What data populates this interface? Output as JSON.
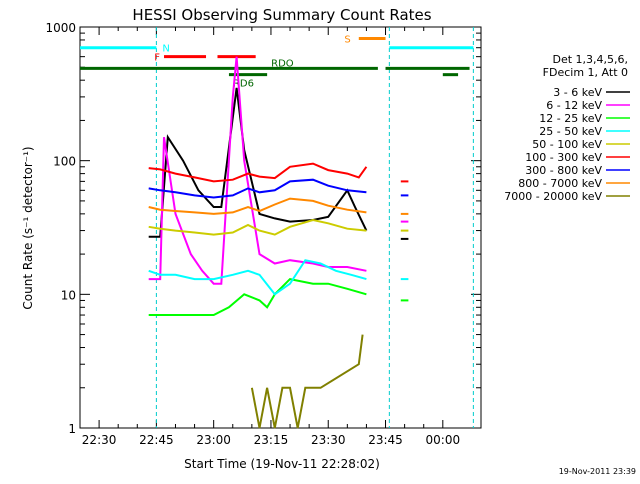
{
  "chart_data": {
    "type": "line",
    "title": "HESSI Observing Summary Count Rates",
    "xlabel": "Start Time (19-Nov-11 22:28:02)",
    "ylabel": "Count Rate (s⁻¹ detector⁻¹)",
    "yscale": "log",
    "ylim": [
      1,
      1000
    ],
    "xlim": [
      "22:25",
      "00:10"
    ],
    "x_ticks": [
      "22:30",
      "22:45",
      "23:00",
      "23:15",
      "23:30",
      "23:45",
      "00:00"
    ],
    "y_ticks": [
      "1",
      "10",
      "100",
      "1000"
    ],
    "legend_header": [
      "Det 1,3,4,5,6,",
      "FDecim 1, Att 0"
    ],
    "legend_placement": "right",
    "footer_timestamp": "19-Nov-2011 23:39",
    "grid": false,
    "series": [
      {
        "name": "3 - 6 keV",
        "color": "#000000",
        "x": [
          "22:43",
          "22:46",
          "22:48",
          "22:52",
          "22:56",
          "23:00",
          "23:02",
          "23:06",
          "23:08",
          "23:12",
          "23:16",
          "23:20",
          "23:26",
          "23:30",
          "23:35",
          "23:37",
          "23:40",
          "23:42",
          "23:46",
          "23:49",
          "23:51"
        ],
        "y": [
          27,
          27,
          150,
          100,
          60,
          45,
          45,
          350,
          120,
          40,
          37,
          35,
          36,
          38,
          60,
          45,
          30,
          null,
          null,
          26,
          26
        ]
      },
      {
        "name": "6 - 12 keV",
        "color": "#ff00ff",
        "x": [
          "22:43",
          "22:46",
          "22:47",
          "22:50",
          "22:54",
          "22:57",
          "23:00",
          "23:02",
          "23:05",
          "23:06",
          "23:08",
          "23:12",
          "23:16",
          "23:20",
          "23:26",
          "23:30",
          "23:35",
          "23:40",
          "23:46",
          "23:49",
          "23:51"
        ],
        "y": [
          13,
          13,
          150,
          40,
          20,
          15,
          12,
          12,
          300,
          600,
          100,
          20,
          17,
          18,
          17,
          16,
          16,
          15,
          null,
          35,
          35
        ]
      },
      {
        "name": "12 - 25 keV",
        "color": "#00ff00",
        "x": [
          "22:43",
          "22:46",
          "22:50",
          "22:55",
          "23:00",
          "23:04",
          "23:08",
          "23:12",
          "23:14",
          "23:16",
          "23:20",
          "23:26",
          "23:30",
          "23:35",
          "23:40",
          "23:42",
          "23:46",
          "23:49",
          "23:51"
        ],
        "y": [
          7,
          7,
          7,
          7,
          7,
          8,
          10,
          9,
          8,
          10,
          13,
          12,
          12,
          11,
          10,
          null,
          null,
          9,
          9
        ]
      },
      {
        "name": "25 - 50 keV",
        "color": "#00ffff",
        "x": [
          "22:43",
          "22:46",
          "22:50",
          "22:55",
          "23:00",
          "23:05",
          "23:09",
          "23:12",
          "23:16",
          "23:20",
          "23:24",
          "23:28",
          "23:32",
          "23:36",
          "23:40",
          "23:42",
          "23:46",
          "23:49",
          "23:51"
        ],
        "y": [
          15,
          14,
          14,
          13,
          13,
          14,
          15,
          14,
          10,
          12,
          18,
          17,
          15,
          14,
          13,
          null,
          null,
          13,
          13
        ]
      },
      {
        "name": "50 - 100 keV",
        "color": "#cccc00",
        "x": [
          "22:43",
          "22:46",
          "22:50",
          "22:55",
          "23:00",
          "23:05",
          "23:09",
          "23:12",
          "23:16",
          "23:20",
          "23:26",
          "23:30",
          "23:35",
          "23:40",
          "23:42",
          "23:46",
          "23:49",
          "23:51"
        ],
        "y": [
          32,
          31,
          30,
          29,
          28,
          29,
          33,
          30,
          28,
          32,
          36,
          34,
          31,
          30,
          null,
          null,
          30,
          30
        ]
      },
      {
        "name": "100 - 300 keV",
        "color": "#ff0000",
        "x": [
          "22:43",
          "22:46",
          "22:50",
          "22:55",
          "23:00",
          "23:05",
          "23:09",
          "23:12",
          "23:16",
          "23:20",
          "23:26",
          "23:30",
          "23:35",
          "23:38",
          "23:40",
          "23:42",
          "23:46",
          "23:49",
          "23:51"
        ],
        "y": [
          88,
          86,
          80,
          75,
          70,
          72,
          80,
          76,
          74,
          90,
          95,
          85,
          80,
          75,
          90,
          null,
          null,
          70,
          70
        ]
      },
      {
        "name": "300 - 800 keV",
        "color": "#0000ff",
        "x": [
          "22:43",
          "22:46",
          "22:50",
          "22:55",
          "23:00",
          "23:05",
          "23:09",
          "23:12",
          "23:16",
          "23:20",
          "23:26",
          "23:30",
          "23:35",
          "23:40",
          "23:42",
          "23:46",
          "23:49",
          "23:51"
        ],
        "y": [
          62,
          60,
          58,
          55,
          53,
          55,
          62,
          58,
          60,
          70,
          72,
          65,
          60,
          58,
          null,
          null,
          55,
          55
        ]
      },
      {
        "name": "800 - 7000 keV",
        "color": "#ff8800",
        "x": [
          "22:43",
          "22:46",
          "22:50",
          "22:55",
          "23:00",
          "23:05",
          "23:09",
          "23:12",
          "23:16",
          "23:20",
          "23:26",
          "23:30",
          "23:35",
          "23:40",
          "23:42",
          "23:46",
          "23:49",
          "23:51"
        ],
        "y": [
          45,
          43,
          42,
          41,
          40,
          41,
          45,
          42,
          47,
          52,
          50,
          46,
          43,
          41,
          null,
          null,
          40,
          40
        ]
      },
      {
        "name": "7000 - 20000 keV",
        "color": "#808000",
        "x": [
          "23:10",
          "23:12",
          "23:14",
          "23:16",
          "23:18",
          "23:20",
          "23:22",
          "23:24",
          "23:26",
          "23:28",
          "23:38",
          "23:39"
        ],
        "y": [
          2,
          1,
          2,
          1,
          2,
          2,
          1,
          2,
          2,
          2,
          3,
          5
        ]
      }
    ],
    "flags": [
      {
        "label": "N",
        "color": "#00ffff",
        "ranges": [
          [
            "22:25",
            "22:45"
          ],
          [
            "23:46",
            "00:08"
          ]
        ]
      },
      {
        "label": "F",
        "color": "#ff0000",
        "ranges": [
          [
            "22:47",
            "22:58"
          ],
          [
            "23:01",
            "23:11"
          ]
        ]
      },
      {
        "label": "RDO",
        "color": "#006600",
        "ranges": [
          [
            "22:25",
            "23:43"
          ],
          [
            "23:45",
            "00:07"
          ]
        ]
      },
      {
        "label": "RD6",
        "color": "#006600",
        "ranges": [
          [
            "23:04",
            "23:14"
          ],
          [
            "00:00",
            "00:04"
          ]
        ]
      },
      {
        "label": "S",
        "color": "#ff8800",
        "ranges": [
          [
            "23:38",
            "23:45"
          ]
        ]
      }
    ],
    "vertical_markers": [
      "22:45",
      "23:46",
      "00:08"
    ]
  }
}
